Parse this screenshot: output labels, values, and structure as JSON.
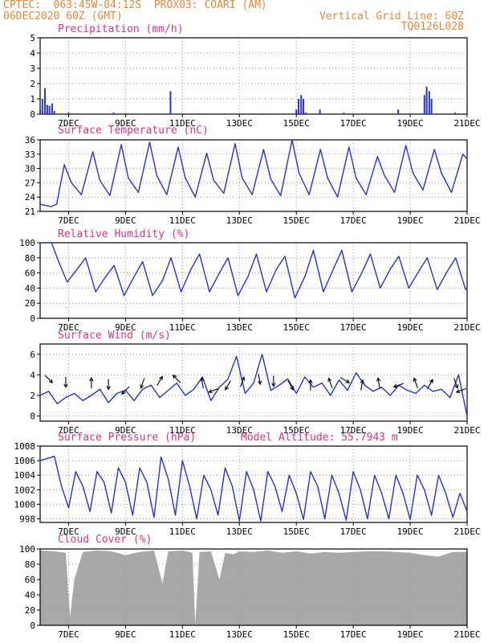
{
  "header": {
    "line1": "CPTEC:  063:45W-04:12S  PROX03: COARI (AM)",
    "line2": "06DEC2020 60Z (GMT)",
    "grid_note": "Vertical Grid Line: 60Z",
    "run_code": "TQ0126L028",
    "model_altitude": "Model Altitude: 55.7943 m"
  },
  "colors": {
    "header": "#e8873a",
    "panel_title": "#e0308a",
    "series": "#2432d8",
    "cloud": "#a8a8a8",
    "grid": "#9a9a9a"
  },
  "x_axis": {
    "start_day": 6.0,
    "end_day": 21.0,
    "tick_days": [
      7,
      9,
      11,
      13,
      15,
      17,
      19,
      21
    ],
    "tick_labels": [
      "7DEC",
      "9DEC",
      "11DEC",
      "13DEC",
      "15DEC",
      "17DEC",
      "19DEC",
      "21DEC"
    ]
  },
  "chart_data": [
    {
      "id": "precipitation",
      "type": "bar",
      "title": "Precipitation (mm/h)",
      "ylim": [
        0,
        5
      ],
      "yticks": [
        0,
        1,
        2,
        3,
        4,
        5
      ],
      "grid": true,
      "x": [
        6.0,
        6.08,
        6.17,
        6.25,
        6.33,
        6.42,
        6.5,
        7.0,
        8.58,
        10.58,
        11.58,
        13.83,
        15.0,
        15.08,
        15.17,
        15.25,
        15.33,
        15.83,
        16.67,
        18.58,
        19.5,
        19.58,
        19.67,
        19.75,
        20.58
      ],
      "values": [
        0.3,
        1.0,
        1.7,
        0.6,
        0.55,
        0.7,
        0.2,
        0.1,
        0.1,
        1.5,
        0.05,
        0.05,
        0.3,
        1.0,
        1.25,
        1.0,
        0.1,
        0.3,
        0.1,
        0.3,
        1.25,
        1.8,
        1.5,
        1.0,
        0.1
      ]
    },
    {
      "id": "surface-temperature",
      "type": "line",
      "title": "Surface Temperature (nC)",
      "ylim": [
        21,
        36
      ],
      "yticks": [
        21,
        24,
        27,
        30,
        33,
        36
      ],
      "grid": true,
      "x": [
        6.0,
        6.38,
        6.58,
        6.85,
        7.1,
        7.45,
        7.85,
        8.1,
        8.45,
        8.85,
        9.1,
        9.45,
        9.85,
        10.1,
        10.45,
        10.85,
        11.1,
        11.45,
        11.85,
        12.1,
        12.45,
        12.85,
        13.1,
        13.45,
        13.85,
        14.1,
        14.45,
        14.85,
        15.1,
        15.45,
        15.85,
        16.1,
        16.45,
        16.85,
        17.1,
        17.45,
        17.85,
        18.1,
        18.45,
        18.85,
        19.1,
        19.45,
        19.85,
        20.1,
        20.45,
        20.85,
        21.0
      ],
      "values": [
        22.5,
        22.0,
        22.5,
        30.8,
        27.0,
        24.5,
        33.5,
        27.5,
        24.3,
        35.0,
        28.0,
        25.0,
        35.5,
        28.5,
        24.5,
        34.5,
        28.0,
        24.0,
        33.2,
        27.5,
        24.8,
        35.2,
        28.0,
        24.5,
        34.0,
        27.8,
        24.3,
        36.0,
        29.0,
        24.5,
        34.0,
        28.0,
        24.0,
        34.5,
        28.0,
        24.5,
        32.5,
        28.5,
        25.0,
        34.8,
        29.0,
        25.5,
        34.0,
        29.0,
        25.0,
        33.0,
        32.0
      ]
    },
    {
      "id": "relative-humidity",
      "type": "line",
      "title": "Relative Humidity (%)",
      "ylim": [
        0,
        100
      ],
      "yticks": [
        0,
        20,
        40,
        60,
        80,
        100
      ],
      "grid": true,
      "x": [
        6.0,
        6.4,
        6.65,
        6.95,
        7.3,
        7.6,
        7.95,
        8.3,
        8.6,
        8.95,
        9.3,
        9.6,
        9.95,
        10.3,
        10.6,
        10.95,
        11.3,
        11.6,
        11.95,
        12.3,
        12.6,
        12.95,
        13.3,
        13.6,
        13.95,
        14.3,
        14.6,
        14.95,
        15.3,
        15.6,
        15.95,
        16.3,
        16.6,
        16.95,
        17.3,
        17.6,
        17.95,
        18.3,
        18.6,
        18.95,
        19.3,
        19.6,
        19.95,
        20.3,
        20.6,
        20.95,
        21.0
      ],
      "values": [
        100,
        100,
        75,
        48,
        65,
        80,
        35,
        55,
        70,
        30,
        55,
        75,
        30,
        50,
        80,
        35,
        65,
        85,
        35,
        60,
        80,
        30,
        55,
        85,
        35,
        65,
        82,
        27,
        55,
        90,
        35,
        65,
        90,
        35,
        60,
        85,
        40,
        65,
        82,
        40,
        62,
        80,
        38,
        62,
        80,
        38,
        40
      ]
    },
    {
      "id": "surface-wind",
      "type": "line",
      "title": "Surface Wind (m/s)",
      "ylim": [
        -0.5,
        7
      ],
      "yticks": [
        0,
        2,
        4,
        6
      ],
      "grid": true,
      "x": [
        6.0,
        6.3,
        6.6,
        6.9,
        7.2,
        7.5,
        7.8,
        8.1,
        8.4,
        8.7,
        9.0,
        9.3,
        9.6,
        9.9,
        10.2,
        10.5,
        10.8,
        11.1,
        11.4,
        11.7,
        12.0,
        12.3,
        12.6,
        12.9,
        13.2,
        13.5,
        13.8,
        14.1,
        14.4,
        14.7,
        15.0,
        15.3,
        15.6,
        15.9,
        16.2,
        16.5,
        16.8,
        17.1,
        17.4,
        17.7,
        18.0,
        18.3,
        18.6,
        18.9,
        19.2,
        19.5,
        19.8,
        20.1,
        20.4,
        20.7,
        21.0
      ],
      "values": [
        2.0,
        2.4,
        1.2,
        1.8,
        2.2,
        1.5,
        2.0,
        2.6,
        1.3,
        2.2,
        2.5,
        1.5,
        2.6,
        3.0,
        1.8,
        2.5,
        3.2,
        2.0,
        2.6,
        3.8,
        1.5,
        2.8,
        3.6,
        5.8,
        2.2,
        3.2,
        6.0,
        2.5,
        3.0,
        3.6,
        2.2,
        3.8,
        2.8,
        3.2,
        2.0,
        3.5,
        2.5,
        4.2,
        3.0,
        2.4,
        2.8,
        2.0,
        3.0,
        2.5,
        2.2,
        3.0,
        2.4,
        2.6,
        1.8,
        4.0,
        0.0
      ],
      "vectors": [
        {
          "day": 6.3,
          "speed": 3.6,
          "dir_deg": 315
        },
        {
          "day": 6.9,
          "speed": 3.3,
          "dir_deg": 270
        },
        {
          "day": 7.8,
          "speed": 3.2,
          "dir_deg": 90
        },
        {
          "day": 8.4,
          "speed": 3.1,
          "dir_deg": 270
        },
        {
          "day": 9.0,
          "speed": 2.5,
          "dir_deg": 225
        },
        {
          "day": 9.6,
          "speed": 3.2,
          "dir_deg": 250
        },
        {
          "day": 10.2,
          "speed": 3.4,
          "dir_deg": 60
        },
        {
          "day": 10.8,
          "speed": 3.6,
          "dir_deg": 135
        },
        {
          "day": 11.7,
          "speed": 3.2,
          "dir_deg": 100
        },
        {
          "day": 12.1,
          "speed": 2.5,
          "dir_deg": 200
        },
        {
          "day": 12.6,
          "speed": 3.0,
          "dir_deg": 240
        },
        {
          "day": 13.1,
          "speed": 3.3,
          "dir_deg": 70
        },
        {
          "day": 13.7,
          "speed": 3.6,
          "dir_deg": 280
        },
        {
          "day": 14.2,
          "speed": 3.4,
          "dir_deg": 270
        },
        {
          "day": 14.8,
          "speed": 3.0,
          "dir_deg": 300
        },
        {
          "day": 15.5,
          "speed": 3.0,
          "dir_deg": 90
        },
        {
          "day": 16.2,
          "speed": 3.2,
          "dir_deg": 110
        },
        {
          "day": 16.7,
          "speed": 3.5,
          "dir_deg": 330
        },
        {
          "day": 17.3,
          "speed": 3.0,
          "dir_deg": 80
        },
        {
          "day": 17.9,
          "speed": 3.2,
          "dir_deg": 100
        },
        {
          "day": 18.6,
          "speed": 3.0,
          "dir_deg": 200
        },
        {
          "day": 19.2,
          "speed": 3.2,
          "dir_deg": 110
        },
        {
          "day": 19.7,
          "speed": 3.1,
          "dir_deg": 60
        },
        {
          "day": 20.6,
          "speed": 3.2,
          "dir_deg": 290
        },
        {
          "day": 20.8,
          "speed": 2.5,
          "dir_deg": 200
        }
      ]
    },
    {
      "id": "surface-pressure",
      "type": "line",
      "title": "Surface Pressure (hPa)",
      "ylim": [
        997.5,
        1008
      ],
      "yticks": [
        998,
        1000,
        1002,
        1004,
        1006,
        1008
      ],
      "grid": true,
      "x": [
        6.0,
        6.25,
        6.5,
        6.75,
        7.0,
        7.25,
        7.5,
        7.75,
        8.0,
        8.25,
        8.5,
        8.75,
        9.0,
        9.25,
        9.5,
        9.75,
        10.0,
        10.25,
        10.5,
        10.75,
        11.0,
        11.25,
        11.5,
        11.75,
        12.0,
        12.25,
        12.5,
        12.75,
        13.0,
        13.25,
        13.5,
        13.75,
        14.0,
        14.25,
        14.5,
        14.75,
        15.0,
        15.25,
        15.5,
        15.75,
        16.0,
        16.25,
        16.5,
        16.75,
        17.0,
        17.25,
        17.5,
        17.75,
        18.0,
        18.25,
        18.5,
        18.75,
        19.0,
        19.25,
        19.5,
        19.75,
        20.0,
        20.25,
        20.5,
        20.75,
        21.0
      ],
      "values": [
        1006.0,
        1006.3,
        1006.6,
        1002.5,
        999.5,
        1004.5,
        1002.5,
        999.0,
        1004.5,
        1003.0,
        998.8,
        1005.0,
        1003.0,
        998.5,
        1005.0,
        1003.0,
        998.2,
        1006.5,
        1003.5,
        998.5,
        1006.0,
        1002.5,
        998.0,
        1004.0,
        1002.0,
        998.5,
        1005.0,
        1002.5,
        997.7,
        1004.5,
        1002.0,
        997.7,
        1004.5,
        1002.5,
        999.0,
        1004.0,
        1001.5,
        997.9,
        1004.5,
        1002.5,
        998.0,
        1004.0,
        1001.5,
        997.8,
        1004.5,
        1002.0,
        998.0,
        1004.0,
        1001.5,
        998.0,
        1004.0,
        1001.5,
        997.9,
        1004.0,
        1002.0,
        998.5,
        1004.0,
        1001.5,
        998.2,
        1001.5,
        999.0
      ]
    },
    {
      "id": "cloud-cover",
      "type": "area",
      "title": "Cloud Cover (%)",
      "ylim": [
        0,
        100
      ],
      "yticks": [
        0,
        20,
        40,
        60,
        80,
        100
      ],
      "grid": true,
      "x": [
        6.0,
        6.5,
        6.9,
        7.05,
        7.2,
        7.5,
        8.0,
        8.5,
        9.0,
        9.5,
        10.0,
        10.3,
        10.5,
        11.0,
        11.35,
        11.45,
        11.6,
        12.0,
        12.3,
        12.5,
        12.8,
        13.0,
        13.5,
        14.0,
        14.5,
        15.0,
        15.5,
        16.0,
        16.5,
        17.0,
        17.5,
        18.0,
        18.5,
        19.0,
        19.5,
        20.0,
        20.5,
        21.0
      ],
      "values": [
        98,
        97,
        95,
        10,
        60,
        96,
        98,
        97,
        92,
        96,
        98,
        55,
        97,
        98,
        95,
        1,
        96,
        97,
        60,
        95,
        93,
        97,
        96,
        98,
        95,
        97,
        94,
        96,
        95,
        96,
        97,
        97,
        96,
        95,
        92,
        90,
        96,
        96
      ]
    }
  ]
}
